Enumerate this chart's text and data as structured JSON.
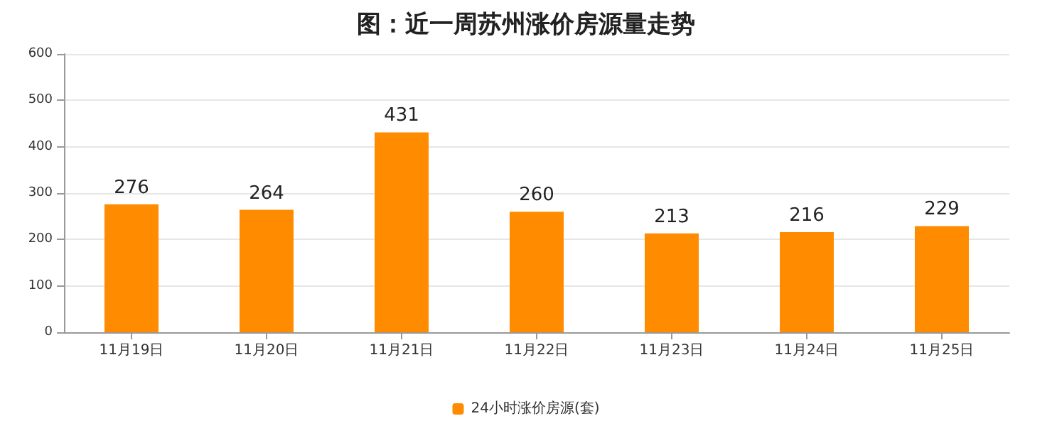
{
  "chart_data": {
    "type": "bar",
    "title": "图：近一周苏州涨价房源量走势",
    "categories": [
      "11月19日",
      "11月20日",
      "11月21日",
      "11月22日",
      "11月23日",
      "11月24日",
      "11月25日"
    ],
    "series": [
      {
        "name": "24小时涨价房源(套)",
        "color": "#ff8c00",
        "values": [
          276,
          264,
          431,
          260,
          213,
          216,
          229
        ]
      }
    ],
    "ylim": [
      0,
      600
    ],
    "yticks": [
      0,
      100,
      200,
      300,
      400,
      500,
      600
    ],
    "grid": "y",
    "legend": "bottom",
    "data_labels": true
  }
}
